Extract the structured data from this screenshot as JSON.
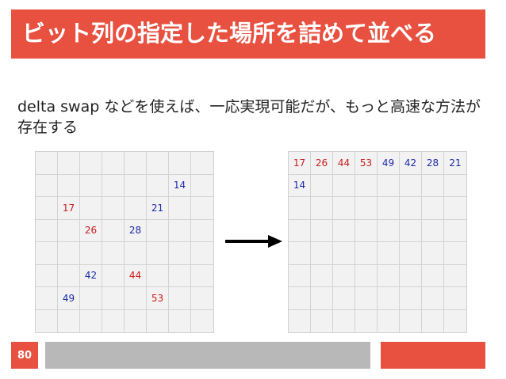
{
  "slide": {
    "title": "ビット列の指定した場所を詰めて並べる",
    "body": "delta swap などを使えば、一応実現可能だが、もっと高速な方法が存在する",
    "page_number": "80"
  },
  "colors": {
    "accent": "#e8503f",
    "footer_gray": "#b8b8b8",
    "red_number": "#cc1b1b",
    "blue_number": "#1b2aa8"
  },
  "left_grid": {
    "rows": [
      [
        {
          "t": ""
        },
        {
          "t": ""
        },
        {
          "t": ""
        },
        {
          "t": ""
        },
        {
          "t": ""
        },
        {
          "t": ""
        },
        {
          "t": ""
        },
        {
          "t": ""
        }
      ],
      [
        {
          "t": ""
        },
        {
          "t": ""
        },
        {
          "t": ""
        },
        {
          "t": ""
        },
        {
          "t": ""
        },
        {
          "t": ""
        },
        {
          "t": "14",
          "c": "blue"
        },
        {
          "t": ""
        }
      ],
      [
        {
          "t": ""
        },
        {
          "t": "17",
          "c": "red"
        },
        {
          "t": ""
        },
        {
          "t": ""
        },
        {
          "t": ""
        },
        {
          "t": "21",
          "c": "blue"
        },
        {
          "t": ""
        },
        {
          "t": ""
        }
      ],
      [
        {
          "t": ""
        },
        {
          "t": ""
        },
        {
          "t": "26",
          "c": "red"
        },
        {
          "t": ""
        },
        {
          "t": "28",
          "c": "blue"
        },
        {
          "t": ""
        },
        {
          "t": ""
        },
        {
          "t": ""
        }
      ],
      [
        {
          "t": ""
        },
        {
          "t": ""
        },
        {
          "t": ""
        },
        {
          "t": ""
        },
        {
          "t": ""
        },
        {
          "t": ""
        },
        {
          "t": ""
        },
        {
          "t": ""
        }
      ],
      [
        {
          "t": ""
        },
        {
          "t": ""
        },
        {
          "t": "42",
          "c": "blue"
        },
        {
          "t": ""
        },
        {
          "t": "44",
          "c": "red"
        },
        {
          "t": ""
        },
        {
          "t": ""
        },
        {
          "t": ""
        }
      ],
      [
        {
          "t": ""
        },
        {
          "t": "49",
          "c": "blue"
        },
        {
          "t": ""
        },
        {
          "t": ""
        },
        {
          "t": ""
        },
        {
          "t": "53",
          "c": "red"
        },
        {
          "t": ""
        },
        {
          "t": ""
        }
      ],
      [
        {
          "t": ""
        },
        {
          "t": ""
        },
        {
          "t": ""
        },
        {
          "t": ""
        },
        {
          "t": ""
        },
        {
          "t": ""
        },
        {
          "t": ""
        },
        {
          "t": ""
        }
      ]
    ]
  },
  "right_grid": {
    "rows": [
      [
        {
          "t": "17",
          "c": "red"
        },
        {
          "t": "26",
          "c": "red"
        },
        {
          "t": "44",
          "c": "red"
        },
        {
          "t": "53",
          "c": "red"
        },
        {
          "t": "49",
          "c": "blue"
        },
        {
          "t": "42",
          "c": "blue"
        },
        {
          "t": "28",
          "c": "blue"
        },
        {
          "t": "21",
          "c": "blue"
        }
      ],
      [
        {
          "t": "14",
          "c": "blue"
        },
        {
          "t": ""
        },
        {
          "t": ""
        },
        {
          "t": ""
        },
        {
          "t": ""
        },
        {
          "t": ""
        },
        {
          "t": ""
        },
        {
          "t": ""
        }
      ],
      [
        {
          "t": ""
        },
        {
          "t": ""
        },
        {
          "t": ""
        },
        {
          "t": ""
        },
        {
          "t": ""
        },
        {
          "t": ""
        },
        {
          "t": ""
        },
        {
          "t": ""
        }
      ],
      [
        {
          "t": ""
        },
        {
          "t": ""
        },
        {
          "t": ""
        },
        {
          "t": ""
        },
        {
          "t": ""
        },
        {
          "t": ""
        },
        {
          "t": ""
        },
        {
          "t": ""
        }
      ],
      [
        {
          "t": ""
        },
        {
          "t": ""
        },
        {
          "t": ""
        },
        {
          "t": ""
        },
        {
          "t": ""
        },
        {
          "t": ""
        },
        {
          "t": ""
        },
        {
          "t": ""
        }
      ],
      [
        {
          "t": ""
        },
        {
          "t": ""
        },
        {
          "t": ""
        },
        {
          "t": ""
        },
        {
          "t": ""
        },
        {
          "t": ""
        },
        {
          "t": ""
        },
        {
          "t": ""
        }
      ],
      [
        {
          "t": ""
        },
        {
          "t": ""
        },
        {
          "t": ""
        },
        {
          "t": ""
        },
        {
          "t": ""
        },
        {
          "t": ""
        },
        {
          "t": ""
        },
        {
          "t": ""
        }
      ],
      [
        {
          "t": ""
        },
        {
          "t": ""
        },
        {
          "t": ""
        },
        {
          "t": ""
        },
        {
          "t": ""
        },
        {
          "t": ""
        },
        {
          "t": ""
        },
        {
          "t": ""
        }
      ]
    ]
  },
  "arrow": {
    "icon": "right-arrow-icon"
  }
}
